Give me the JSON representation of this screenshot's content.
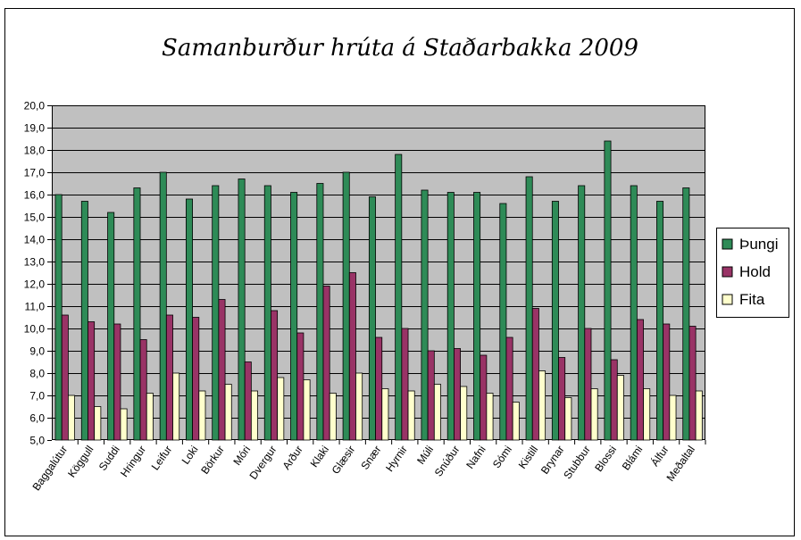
{
  "chart_data": {
    "type": "bar",
    "title": "Samanburður hrúta á Staðarbakka 2009",
    "xlabel": "",
    "ylabel": "",
    "ylim": [
      5,
      20
    ],
    "ytick_step": 1,
    "ytick_labels": [
      "5,0",
      "6,0",
      "7,0",
      "8,0",
      "9,0",
      "10,0",
      "11,0",
      "12,0",
      "13,0",
      "14,0",
      "15,0",
      "16,0",
      "17,0",
      "18,0",
      "19,0",
      "20,0"
    ],
    "grid": true,
    "legend_position": "right",
    "colors": {
      "plot_background": "#c0c0c0",
      "gridline": "#000000",
      "frame": "#000000"
    },
    "categories": [
      "Baggalútur",
      "Köggull",
      "Suddi",
      "Hringur",
      "Leifur",
      "Loki",
      "Börkur",
      "Móri",
      "Dvergur",
      "Arður",
      "Klaki",
      "Glæsir",
      "Snær",
      "Hyrnir",
      "Múli",
      "Snúður",
      "Nafni",
      "Sómi",
      "Kistill",
      "Brynar",
      "Stubbur",
      "Blossi",
      "Blámi",
      "Álfur",
      "Meðaltal"
    ],
    "series": [
      {
        "name": "Þungi",
        "color": "#2e8b57",
        "values": [
          16.0,
          15.7,
          15.2,
          16.3,
          17.0,
          15.8,
          16.4,
          16.7,
          16.4,
          16.1,
          16.5,
          17.0,
          15.9,
          17.8,
          16.2,
          16.1,
          16.1,
          15.6,
          16.8,
          15.7,
          16.4,
          18.4,
          16.4,
          15.7,
          16.3
        ]
      },
      {
        "name": "Hold",
        "color": "#993366",
        "values": [
          10.6,
          10.3,
          10.2,
          9.5,
          10.6,
          10.5,
          11.3,
          8.5,
          10.8,
          9.8,
          11.9,
          12.5,
          9.6,
          10.0,
          9.0,
          9.1,
          8.8,
          9.6,
          10.9,
          8.7,
          10.0,
          8.6,
          10.4,
          10.2,
          10.1
        ]
      },
      {
        "name": "Fita",
        "color": "#ffffcc",
        "values": [
          7.0,
          6.5,
          6.4,
          7.1,
          8.0,
          7.2,
          7.5,
          7.2,
          7.8,
          7.7,
          7.1,
          8.0,
          7.3,
          7.2,
          7.5,
          7.4,
          7.1,
          6.7,
          8.1,
          6.9,
          7.3,
          7.9,
          7.3,
          7.0,
          7.2
        ]
      }
    ]
  }
}
